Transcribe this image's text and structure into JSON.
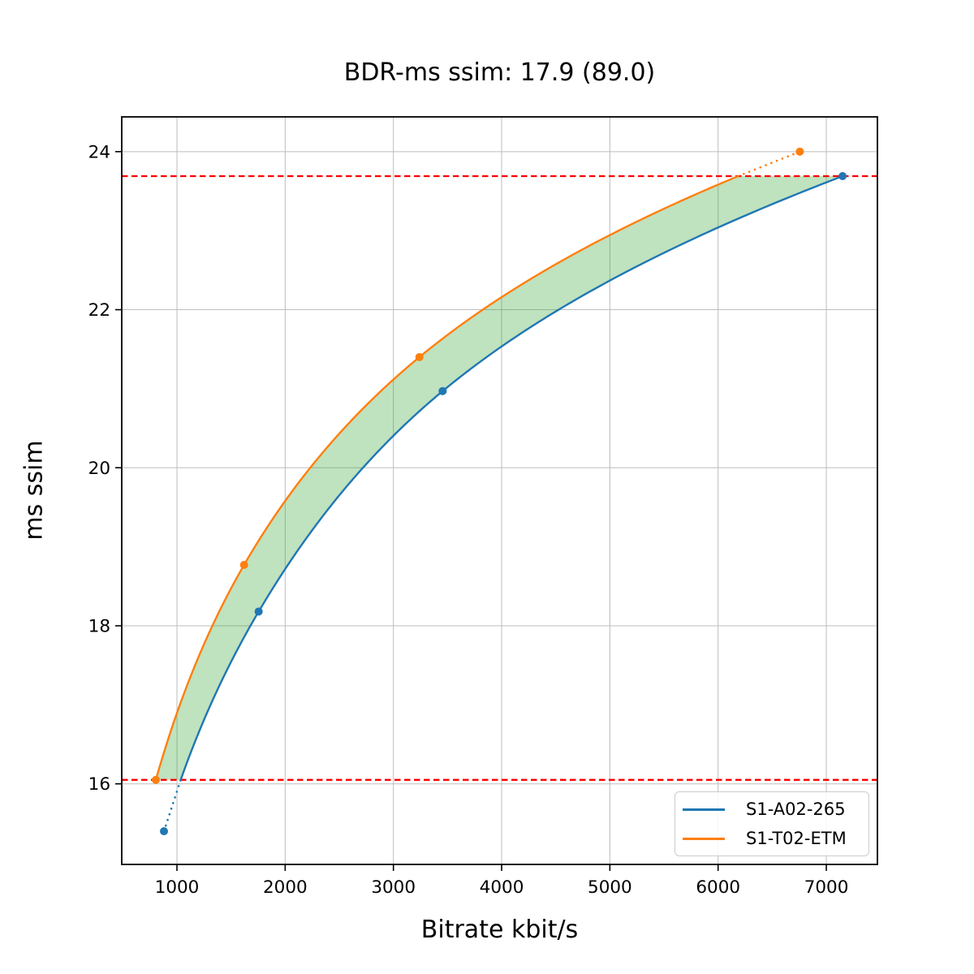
{
  "chart_data": {
    "type": "line",
    "title": "BDR-ms ssim: 17.9 (89.0)",
    "xlabel": "Bitrate kbit/s",
    "ylabel": "ms ssim",
    "xlim": [
      490,
      7472
    ],
    "ylim": [
      14.98,
      24.44
    ],
    "x_ticks": [
      1000,
      2000,
      3000,
      4000,
      5000,
      6000,
      7000
    ],
    "x_tick_labels": [
      "1000",
      "2000",
      "3000",
      "4000",
      "5000",
      "6000",
      "7000"
    ],
    "y_ticks": [
      16,
      18,
      20,
      22,
      24
    ],
    "y_tick_labels": [
      "16",
      "18",
      "20",
      "22",
      "24"
    ],
    "grid": true,
    "legend_position": "lower right",
    "bdr_value": "17.9",
    "overlap_percent": "89.0",
    "series": [
      {
        "name": "S1-A02-265",
        "color": "#1f77b4",
        "interpolation": "log-x monotone cubic",
        "points_x": [
          880,
          1755,
          3455,
          7150
        ],
        "points_y": [
          15.4,
          18.18,
          20.97,
          23.69
        ]
      },
      {
        "name": "S1-T02-ETM",
        "color": "#ff7f0e",
        "interpolation": "log-x monotone cubic",
        "points_x": [
          805,
          1620,
          3240,
          6755
        ],
        "points_y": [
          16.05,
          18.77,
          21.4,
          24.0
        ]
      }
    ],
    "overlap_region": {
      "y_low": 16.05,
      "y_high": 23.69,
      "line_color": "#ff0000",
      "line_style": "dashed",
      "fill_color": "rgba(44,160,44,0.30)"
    }
  },
  "style_colors": {
    "grid": "#bdbdbd",
    "frame": "#000000",
    "tick": "#000000",
    "background": "#ffffff"
  }
}
